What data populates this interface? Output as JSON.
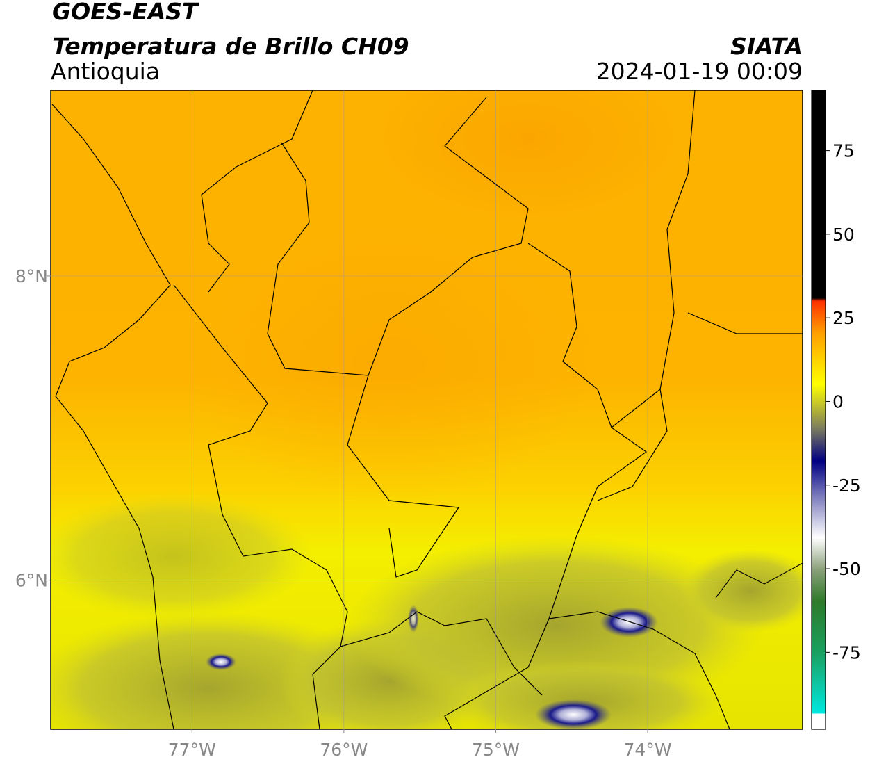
{
  "header": {
    "satellite": "GOES-EAST",
    "product": "Temperatura de Brillo CH09",
    "region": "Antioquia",
    "agency": "SIATA",
    "datetime": "2024-01-19 00:09"
  },
  "map": {
    "xlim": [
      -77.93,
      -72.98
    ],
    "ylim": [
      5.02,
      9.22
    ],
    "xticks": [
      {
        "value": -77,
        "label": "77°W"
      },
      {
        "value": -76,
        "label": "76°W"
      },
      {
        "value": -75,
        "label": "75°W"
      },
      {
        "value": -74,
        "label": "74°W"
      }
    ],
    "yticks": [
      {
        "value": 8,
        "label": "8°N"
      },
      {
        "value": 6,
        "label": "6°N"
      }
    ]
  },
  "colorbar": {
    "lim": [
      -98,
      93
    ],
    "ticks": [
      75,
      50,
      25,
      0,
      -25,
      -50,
      -75
    ]
  }
}
